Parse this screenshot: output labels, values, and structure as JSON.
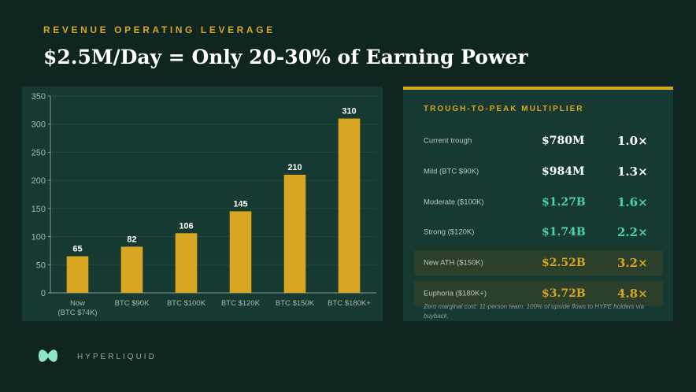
{
  "header": {
    "kicker": "REVENUE OPERATING LEVERAGE",
    "title": "$2.5M/Day = Only 20-30% of Earning Power"
  },
  "chart_data": {
    "type": "bar",
    "categories": [
      "Now\n(BTC $74K)",
      "BTC $90K",
      "BTC $100K",
      "BTC $120K",
      "BTC $150K",
      "BTC $180K+"
    ],
    "values": [
      65,
      82,
      106,
      145,
      210,
      310
    ],
    "color": "#d9a621",
    "ylim": [
      0,
      350
    ],
    "yticks": [
      0,
      50,
      100,
      150,
      200,
      250,
      300,
      350
    ],
    "grid": true
  },
  "table": {
    "title": "TROUGH-TO-PEAK MULTIPLIER",
    "rows": [
      {
        "label": "Current trough",
        "value": "$780M",
        "multiplier": "1.0×",
        "color": "#ffffff",
        "highlight": false
      },
      {
        "label": "Mild (BTC $90K)",
        "value": "$984M",
        "multiplier": "1.3×",
        "color": "#ffffff",
        "highlight": false
      },
      {
        "label": "Moderate ($100K)",
        "value": "$1.27B",
        "multiplier": "1.6×",
        "color": "#4fd1b0",
        "highlight": false
      },
      {
        "label": "Strong ($120K)",
        "value": "$1.74B",
        "multiplier": "2.2×",
        "color": "#4fd1b0",
        "highlight": false
      },
      {
        "label": "New ATH ($150K)",
        "value": "$2.52B",
        "multiplier": "3.2×",
        "color": "#d9a621",
        "highlight": true
      },
      {
        "label": "Euphoria ($180K+)",
        "value": "$3.72B",
        "multiplier": "4.8×",
        "color": "#d9a621",
        "highlight": true
      }
    ],
    "footnote": "Zero marginal cost: 11-person team. 100% of upside flows to HYPE holders via buyback."
  },
  "footer": {
    "brand": "HYPERLIQUID"
  }
}
